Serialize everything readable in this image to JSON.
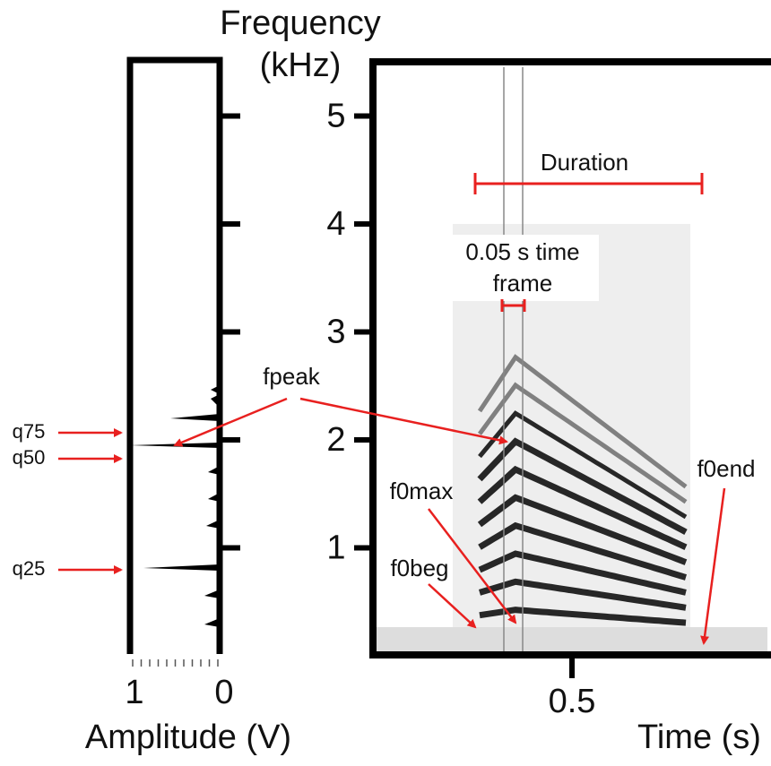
{
  "frequency_axis": {
    "title_line1": "Frequency",
    "title_line2": "(kHz)",
    "ticks": [
      1,
      2,
      3,
      4,
      5
    ]
  },
  "amplitude_axis": {
    "title": "Amplitude (V)",
    "ticks": [
      1,
      0
    ]
  },
  "time_axis": {
    "title": "Time (s)",
    "ticks": [
      0.5
    ]
  },
  "annotations": {
    "duration": "Duration",
    "frame_line1": "0.05 s time",
    "frame_line2": "frame",
    "fpeak": "fpeak",
    "f0max": "f0max",
    "f0beg": "f0beg",
    "f0end": "f0end",
    "q75": "q75",
    "q50": "q50",
    "q25": "q25"
  }
}
